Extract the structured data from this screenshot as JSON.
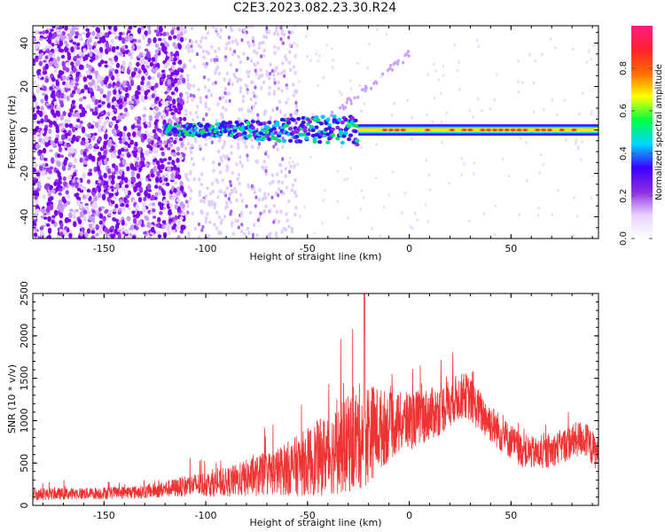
{
  "figure_title": "C2E3.2023.082.23.30.R24",
  "chart_data": [
    {
      "type": "heatmap",
      "title": "",
      "xlabel": "Height of straight line (km)",
      "ylabel": "Frequency (Hz)",
      "xlim": [
        -185,
        93
      ],
      "ylim": [
        -50,
        48
      ],
      "xticks": [
        -150,
        -100,
        -50,
        0,
        50
      ],
      "yticks": [
        -40,
        -20,
        0,
        20,
        40
      ],
      "grid": false,
      "colorbar": {
        "label": "Normalized spectral amplitude",
        "range": [
          0.0,
          1.0
        ],
        "ticks": [
          "0.0",
          "0.2",
          "0.4",
          "0.6",
          "0.8"
        ],
        "colors": [
          "#ffffff",
          "#ead0ff",
          "#8a2be2",
          "#3a00ff",
          "#00d8ff",
          "#00ff44",
          "#ffff00",
          "#ff6a00",
          "#ff1f30",
          "#ff1f80"
        ]
      },
      "features": {
        "noise_region_x": [
          -185,
          -110
        ],
        "signal_line_y": 0,
        "signal_start_x": -120,
        "strong_signal_start_x": -25
      }
    },
    {
      "type": "line",
      "title": "",
      "xlabel": "Height of straight line (km)",
      "ylabel": "SNR (10 * v/v)",
      "xlim": [
        -185,
        93
      ],
      "ylim": [
        0,
        2500
      ],
      "xticks": [
        -150,
        -100,
        -50,
        0,
        50
      ],
      "yticks": [
        0,
        500,
        1000,
        1500,
        2000,
        2500
      ],
      "grid": false,
      "color": "#ee3333",
      "trend": {
        "x": [
          -185,
          -160,
          -130,
          -115,
          -105,
          -90,
          -80,
          -65,
          -55,
          -45,
          -35,
          -28,
          -22,
          -15,
          -8,
          0,
          8,
          15,
          22,
          28,
          35,
          45,
          55,
          65,
          75,
          85,
          93
        ],
        "center": [
          130,
          140,
          160,
          210,
          240,
          270,
          320,
          400,
          470,
          560,
          650,
          750,
          850,
          900,
          940,
          1000,
          1060,
          1120,
          1250,
          1300,
          1100,
          850,
          650,
          600,
          700,
          800,
          600
        ],
        "spread": [
          70,
          70,
          80,
          110,
          140,
          170,
          220,
          280,
          360,
          450,
          520,
          600,
          650,
          500,
          380,
          350,
          320,
          300,
          280,
          270,
          250,
          220,
          200,
          190,
          200,
          220,
          200
        ]
      },
      "peak": {
        "x": -22,
        "y": 2500
      }
    }
  ]
}
